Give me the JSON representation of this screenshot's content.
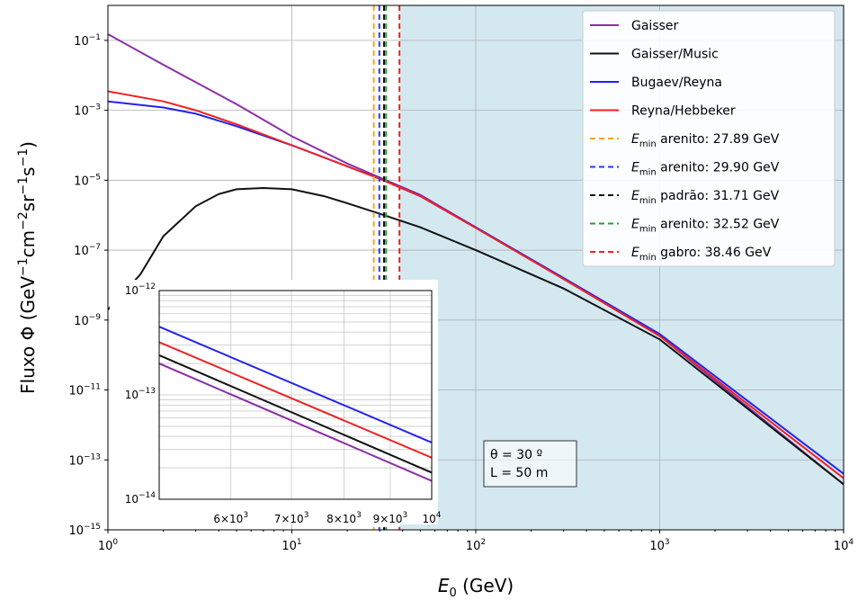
{
  "chart_data": {
    "type": "line",
    "xlabel": "E0 (GeV)",
    "ylabel": "Fluxo Φ (GeV⁻¹cm⁻²sr⁻¹s⁻¹)",
    "xscale": "log",
    "yscale": "log",
    "xlim": [
      1,
      10000
    ],
    "ylim": [
      1e-15,
      1
    ],
    "grid": true,
    "x_ticks": [
      "10^0",
      "10^1",
      "10^2",
      "10^3",
      "10^4"
    ],
    "y_ticks": [
      "10^-15",
      "10^-13",
      "10^-11",
      "10^-9",
      "10^-7",
      "10^-5",
      "10^-3",
      "10^-1"
    ],
    "shaded_region": {
      "x_from": 38.46,
      "x_to": 10000,
      "color": "#d4e8f0"
    },
    "series": [
      {
        "name": "Gaisser",
        "color": "#8b2fa6",
        "x": [
          1,
          2,
          5,
          10,
          20,
          30,
          50,
          100,
          300,
          1000,
          10000
        ],
        "y": [
          0.15,
          0.02,
          0.0015,
          0.00018,
          3e-05,
          1.2e-05,
          3.8e-06,
          4.5e-07,
          1.5e-08,
          3.5e-10,
          2e-14
        ]
      },
      {
        "name": "Gaisser/Music",
        "color": "#111111",
        "x": [
          1,
          1.5,
          2,
          3,
          4,
          5,
          7,
          10,
          15,
          20,
          30,
          50,
          100,
          300,
          1000,
          10000
        ],
        "y": [
          2e-09,
          2e-08,
          2.5e-07,
          1.8e-06,
          4e-06,
          5.5e-06,
          6e-06,
          5.5e-06,
          3.5e-06,
          2.2e-06,
          1.1e-06,
          4.5e-07,
          1e-07,
          8e-09,
          2.8e-10,
          2e-14
        ]
      },
      {
        "name": "Bugaev/Reyna",
        "color": "#2222ee",
        "x": [
          1,
          2,
          3,
          5,
          10,
          20,
          30,
          50,
          100,
          300,
          1000,
          10000
        ],
        "y": [
          0.0018,
          0.0012,
          0.0008,
          0.00035,
          0.0001,
          2.5e-05,
          1.1e-05,
          3.5e-06,
          4.5e-07,
          1.6e-08,
          4e-10,
          4e-14
        ]
      },
      {
        "name": "Reyna/Hebbeker",
        "color": "#ee2222",
        "x": [
          1,
          2,
          3,
          5,
          10,
          20,
          30,
          50,
          100,
          300,
          1000,
          10000
        ],
        "y": [
          0.0035,
          0.0018,
          0.001,
          0.0004,
          0.0001,
          2.5e-05,
          1.1e-05,
          3.5e-06,
          4.3e-07,
          1.5e-08,
          3.5e-10,
          3e-14
        ]
      }
    ],
    "vlines": [
      {
        "name": "Emin arenito: 27.89 GeV",
        "label": "arenito: 27.89 GeV",
        "x": 27.89,
        "color": "#f5a623"
      },
      {
        "name": "Emin arenito: 29.90 GeV",
        "label": "arenito: 29.90 GeV",
        "x": 29.9,
        "color": "#2a3cf0"
      },
      {
        "name": "Emin padrão: 31.71 GeV",
        "label": "padrão: 31.71 GeV",
        "x": 31.71,
        "color": "#111111"
      },
      {
        "name": "Emin arenito: 32.52 GeV",
        "label": "arenito: 32.52 GeV",
        "x": 32.52,
        "color": "#2a9d3a"
      },
      {
        "name": "Emin gabro: 38.46 GeV",
        "label": "gabro: 38.46 GeV",
        "x": 38.46,
        "color": "#ee2222"
      }
    ],
    "legend_position": "top-right",
    "annotation": [
      "θ = 30 º",
      "L = 50 m"
    ],
    "inset": {
      "xscale": "log",
      "yscale": "log",
      "xlim": [
        5000,
        10000
      ],
      "ylim": [
        1e-14,
        1e-12
      ],
      "x_ticks": [
        "6×10^3",
        "7×10^3",
        "8×10^3",
        "9×10^3",
        "10^4"
      ],
      "y_ticks": [
        "10^-14",
        "10^-13",
        "10^-12"
      ],
      "series": [
        {
          "name": "Bugaev/Reyna",
          "color": "#2222ee",
          "x": [
            5000,
            10000
          ],
          "y": [
            4.5e-13,
            3.5e-14
          ]
        },
        {
          "name": "Reyna/Hebbeker",
          "color": "#ee2222",
          "x": [
            5000,
            10000
          ],
          "y": [
            3.2e-13,
            2.5e-14
          ]
        },
        {
          "name": "Gaisser/Music",
          "color": "#111111",
          "x": [
            5000,
            10000
          ],
          "y": [
            2.4e-13,
            1.8e-14
          ]
        },
        {
          "name": "Gaisser",
          "color": "#8b2fa6",
          "x": [
            5000,
            10000
          ],
          "y": [
            2e-13,
            1.5e-14
          ]
        }
      ]
    }
  }
}
